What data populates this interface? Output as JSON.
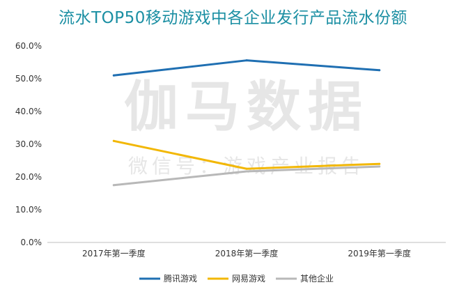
{
  "chart_data": {
    "type": "line",
    "title": "流水TOP50移动游戏中各企业发行产品流水份额",
    "categories": [
      "2017年第一季度",
      "2018年第一季度",
      "2019年第一季度"
    ],
    "ylim": [
      0,
      60
    ],
    "yticks": [
      "0.0%",
      "10.0%",
      "20.0%",
      "30.0%",
      "40.0%",
      "50.0%",
      "60.0%"
    ],
    "grid": false,
    "legend_position": "bottom",
    "series": [
      {
        "name": "腾讯游戏",
        "color": "#1f6fb2",
        "values": [
          51.0,
          55.6,
          52.6
        ]
      },
      {
        "name": "网易游戏",
        "color": "#f2b705",
        "values": [
          31.0,
          22.5,
          24.0
        ]
      },
      {
        "name": "其他企业",
        "color": "#b8b8b8",
        "values": [
          17.5,
          21.7,
          23.2
        ]
      }
    ]
  },
  "watermark": {
    "main": "伽马数据",
    "sub": "微信号：游戏产业报告"
  }
}
